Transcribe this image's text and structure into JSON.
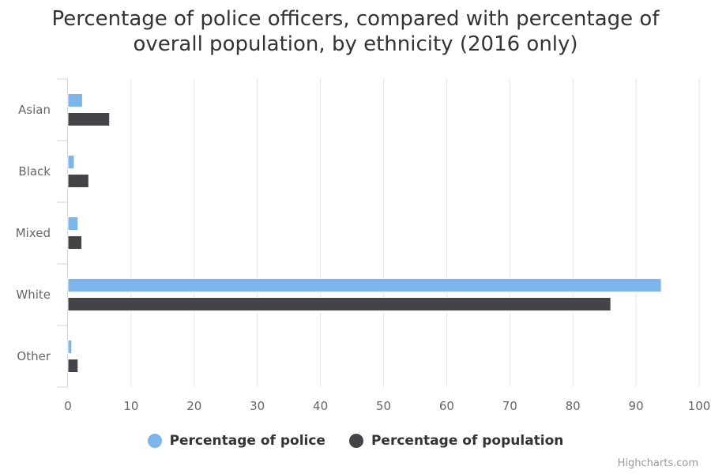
{
  "chart_data": {
    "type": "bar",
    "orientation": "horizontal",
    "title_lines": [
      "Percentage of police officers, compared with percentage of",
      "overall population, by ethnicity (2016 only)"
    ],
    "categories": [
      "Asian",
      "Black",
      "Mixed",
      "White",
      "Other"
    ],
    "series": [
      {
        "name": "Percentage of police",
        "color": "#7cb5ec",
        "values": [
          2.3,
          1.0,
          1.6,
          94.0,
          0.6
        ]
      },
      {
        "name": "Percentage of population",
        "color": "#434348",
        "values": [
          6.6,
          3.3,
          2.2,
          86.0,
          1.6
        ]
      }
    ],
    "xlim": [
      0,
      100
    ],
    "xticks": [
      "0",
      "10",
      "20",
      "30",
      "40",
      "50",
      "60",
      "70",
      "80",
      "90",
      "100"
    ],
    "grid": true,
    "legend_position": "bottom"
  },
  "credits": "Highcharts.com"
}
